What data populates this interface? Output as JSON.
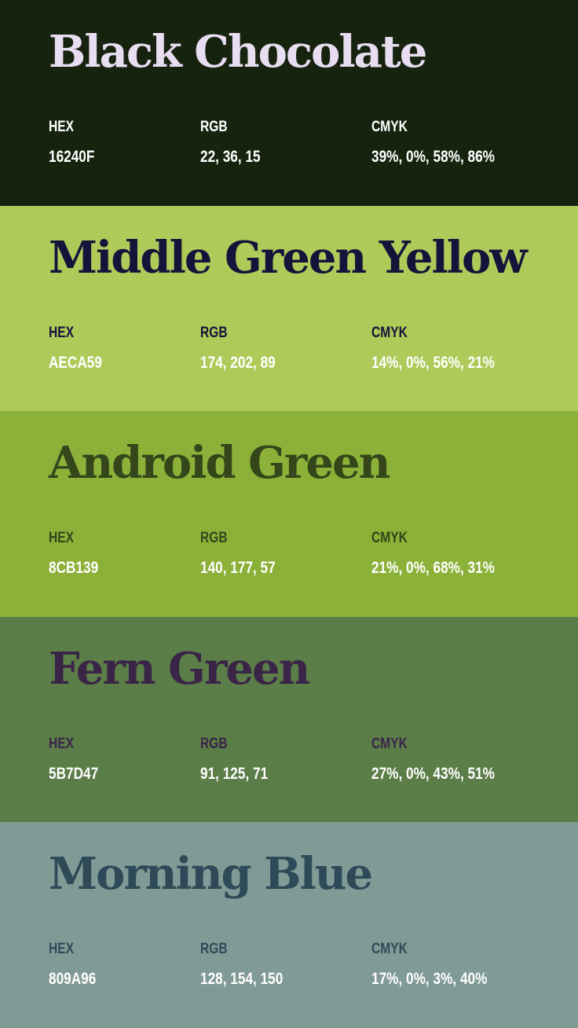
{
  "swatches": [
    {
      "name": "Black Chocolate",
      "hex_label": "HEX",
      "hex": "16240F",
      "rgb_label": "RGB",
      "rgb": "22, 36, 15",
      "cmyk_label": "CMYK",
      "cmyk": "39%, 0%, 58%, 86%",
      "colors": {
        "background": "#16240F",
        "name": "#E9DDF1",
        "label": "#FFFFFF",
        "value": "#FFFFFF"
      }
    },
    {
      "name": "Middle Green Yellow",
      "hex_label": "HEX",
      "hex": "AECA59",
      "rgb_label": "RGB",
      "rgb": "174, 202, 89",
      "cmyk_label": "CMYK",
      "cmyk": "14%, 0%, 56%, 21%",
      "colors": {
        "background": "#AECA59",
        "name": "#15133A",
        "label": "#15133A",
        "value": "#FFFFFF"
      }
    },
    {
      "name": "Android Green",
      "hex_label": "HEX",
      "hex": "8CB139",
      "rgb_label": "RGB",
      "rgb": "140, 177, 57",
      "cmyk_label": "CMYK",
      "cmyk": "21%, 0%, 68%, 31%",
      "colors": {
        "background": "#8CB139",
        "name": "#34461A",
        "label": "#34461A",
        "value": "#FFFFFF"
      }
    },
    {
      "name": "Fern Green",
      "hex_label": "HEX",
      "hex": "5B7D47",
      "rgb_label": "RGB",
      "rgb": "91, 125, 71",
      "cmyk_label": "CMYK",
      "cmyk": "27%, 0%, 43%, 51%",
      "colors": {
        "background": "#5B7D47",
        "name": "#3A2548",
        "label": "#3A2548",
        "value": "#FFFFFF"
      }
    },
    {
      "name": "Morning Blue",
      "hex_label": "HEX",
      "hex": "809A96",
      "rgb_label": "RGB",
      "rgb": "128, 154, 150",
      "cmyk_label": "CMYK",
      "cmyk": "17%, 0%, 3%, 40%",
      "colors": {
        "background": "#809A96",
        "name": "#2E4A58",
        "label": "#2E4A58",
        "value": "#FFFFFF"
      }
    }
  ]
}
